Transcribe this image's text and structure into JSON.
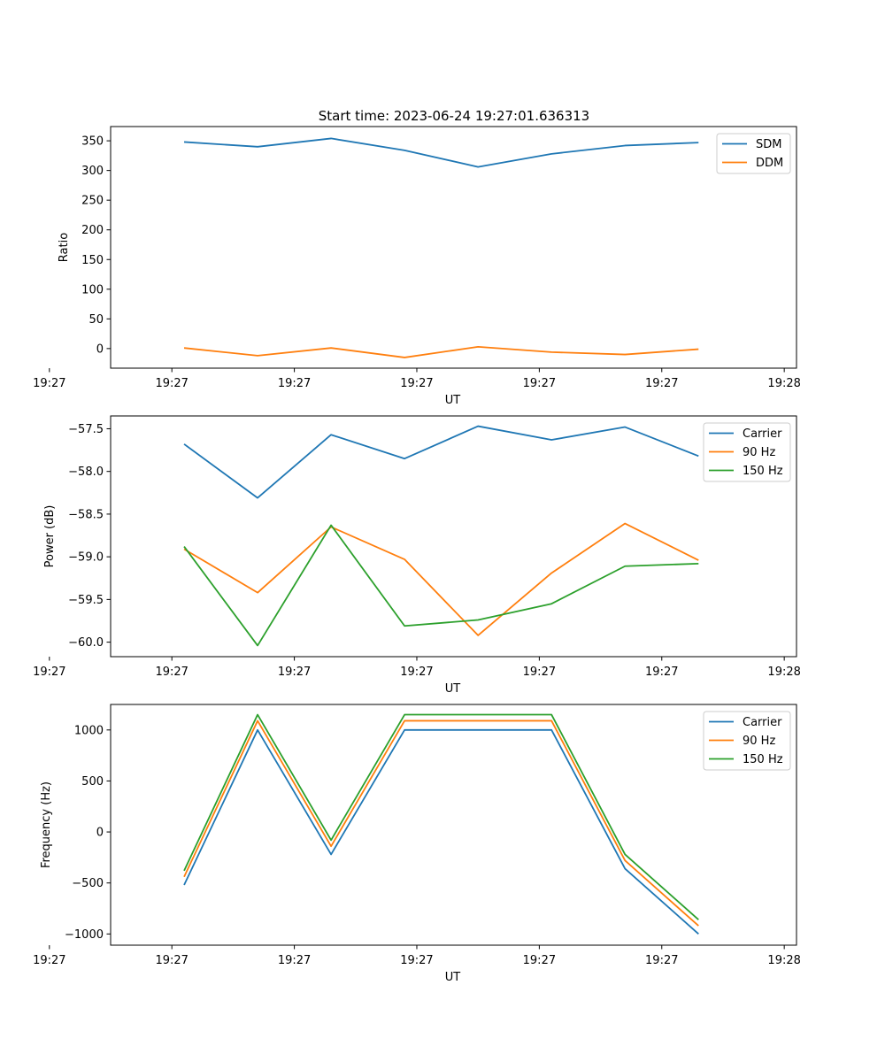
{
  "figure": {
    "title": "Start time: 2023-06-24 19:27:01.636313"
  },
  "chart_data": [
    {
      "type": "line",
      "title": "Start time: 2023-06-24 19:27:01.636313",
      "xlabel": "UT",
      "ylabel": "Ratio",
      "x": [
        "19:27:11",
        "19:27:17",
        "19:27:23",
        "19:27:29",
        "19:27:35",
        "19:27:41",
        "19:27:47",
        "19:27:53"
      ],
      "xlim": [
        "19:27:05",
        "19:28:01"
      ],
      "xticks": [
        "19:27",
        "19:27",
        "19:27",
        "19:27",
        "19:27",
        "19:27",
        "19:28"
      ],
      "ylim": [
        -33,
        374
      ],
      "yticks": [
        0,
        50,
        100,
        150,
        200,
        250,
        300,
        350
      ],
      "ytick_labels": [
        "0",
        "50",
        "100",
        "150",
        "200",
        "250",
        "300",
        "350"
      ],
      "legend": "top-right",
      "series": [
        {
          "name": "SDM",
          "color": "#1f77b4",
          "values": [
            348,
            340,
            354,
            334,
            306,
            328,
            342,
            347
          ]
        },
        {
          "name": "DDM",
          "color": "#ff7f0e",
          "values": [
            1,
            -12,
            1,
            -15,
            3,
            -6,
            -10,
            -1
          ]
        }
      ]
    },
    {
      "type": "line",
      "title": "",
      "xlabel": "UT",
      "ylabel": "Power (dB)",
      "x": [
        "19:27:11",
        "19:27:17",
        "19:27:23",
        "19:27:29",
        "19:27:35",
        "19:27:41",
        "19:27:47",
        "19:27:53"
      ],
      "xlim": [
        "19:27:05",
        "19:28:01"
      ],
      "xticks": [
        "19:27",
        "19:27",
        "19:27",
        "19:27",
        "19:27",
        "19:27",
        "19:28"
      ],
      "ylim": [
        -60.17,
        -57.35
      ],
      "yticks": [
        -60.0,
        -59.5,
        -59.0,
        -58.5,
        -58.0,
        -57.5
      ],
      "ytick_labels": [
        "−60.0",
        "−59.5",
        "−59.0",
        "−58.5",
        "−58.0",
        "−57.5"
      ],
      "legend": "top-right",
      "series": [
        {
          "name": "Carrier",
          "color": "#1f77b4",
          "values": [
            -57.68,
            -58.31,
            -57.57,
            -57.85,
            -57.47,
            -57.63,
            -57.48,
            -57.82
          ]
        },
        {
          "name": "90 Hz",
          "color": "#ff7f0e",
          "values": [
            -58.91,
            -59.42,
            -58.65,
            -59.03,
            -59.92,
            -59.19,
            -58.61,
            -59.04
          ]
        },
        {
          "name": "150 Hz",
          "color": "#2ca02c",
          "values": [
            -58.88,
            -60.04,
            -58.63,
            -59.81,
            -59.74,
            -59.55,
            -59.11,
            -59.08
          ]
        }
      ]
    },
    {
      "type": "line",
      "title": "",
      "xlabel": "UT",
      "ylabel": "Frequency (Hz)",
      "x": [
        "19:27:11",
        "19:27:17",
        "19:27:23",
        "19:27:29",
        "19:27:35",
        "19:27:41",
        "19:27:47",
        "19:27:53"
      ],
      "xlim": [
        "19:27:05",
        "19:28:01"
      ],
      "xticks": [
        "19:27",
        "19:27",
        "19:27",
        "19:27",
        "19:27",
        "19:27",
        "19:28"
      ],
      "ylim": [
        -1110,
        1250
      ],
      "yticks": [
        -1000,
        -500,
        0,
        500,
        1000
      ],
      "ytick_labels": [
        "−1000",
        "−500",
        "0",
        "500",
        "1000"
      ],
      "legend": "top-right",
      "series": [
        {
          "name": "Carrier",
          "color": "#1f77b4",
          "values": [
            -520,
            1000,
            -220,
            1000,
            1000,
            1000,
            -360,
            -1000
          ]
        },
        {
          "name": "90 Hz",
          "color": "#ff7f0e",
          "values": [
            -440,
            1090,
            -140,
            1090,
            1090,
            1090,
            -280,
            -920
          ]
        },
        {
          "name": "150 Hz",
          "color": "#2ca02c",
          "values": [
            -380,
            1150,
            -80,
            1150,
            1150,
            1150,
            -220,
            -860
          ]
        }
      ]
    }
  ]
}
